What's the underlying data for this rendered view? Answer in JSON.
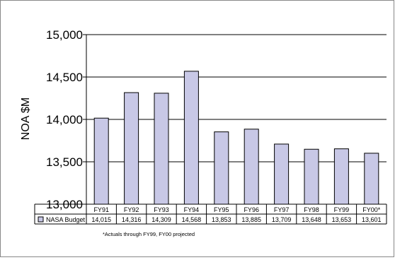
{
  "chart_data": {
    "type": "bar",
    "categories": [
      "FY91",
      "FY92",
      "FY93",
      "FY94",
      "FY95",
      "FY96",
      "FY97",
      "FY98",
      "FY99",
      "FY00*"
    ],
    "series": [
      {
        "name": "NASA Budget",
        "values": [
          14015,
          14316,
          14309,
          14568,
          13853,
          13885,
          13709,
          13648,
          13653,
          13601
        ],
        "labels": [
          "14,015",
          "14,316",
          "14,309",
          "14,568",
          "13,853",
          "13,885",
          "13,709",
          "13,648",
          "13,653",
          "13,601"
        ],
        "color": "#c8c8e6"
      }
    ],
    "ylabel": "NOA $M",
    "ylim": [
      13000,
      15000
    ],
    "yticks": [
      13000,
      13500,
      14000,
      14500,
      15000
    ],
    "ytick_labels": [
      "13,000",
      "13,500",
      "14,000",
      "14,500",
      "15,000"
    ],
    "grid": true,
    "legend": "data-table",
    "footnote": "*Actuals through FY99, FY00 projected"
  }
}
